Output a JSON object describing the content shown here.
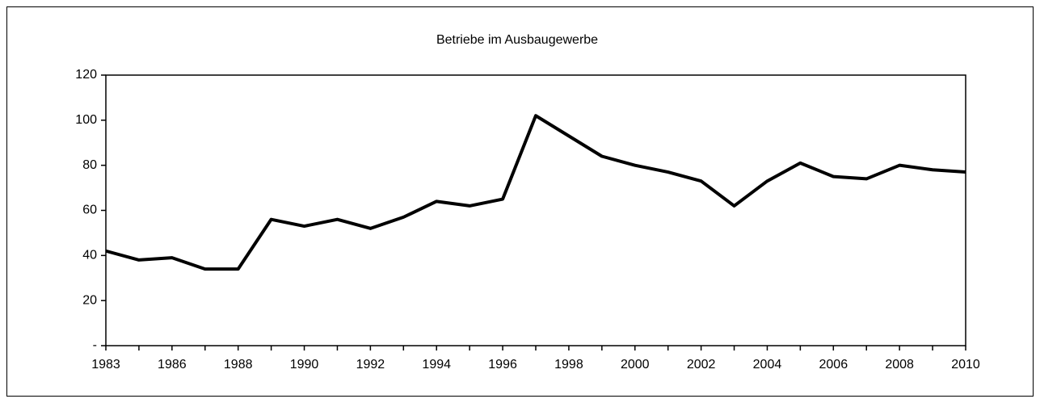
{
  "chart_data": {
    "type": "line",
    "title": "Betriebe im Ausbaugewerbe",
    "categories": [
      "1983",
      null,
      "1986",
      null,
      "1988",
      null,
      "1990",
      null,
      "1992",
      null,
      "1994",
      null,
      "1996",
      null,
      "1998",
      null,
      "2000",
      null,
      "2002",
      null,
      "2004",
      null,
      "2006",
      null,
      "2008",
      null,
      "2010"
    ],
    "values": [
      42,
      38,
      39,
      34,
      34,
      56,
      53,
      56,
      52,
      57,
      64,
      62,
      65,
      102,
      93,
      84,
      80,
      77,
      73,
      62,
      73,
      81,
      75,
      74,
      80,
      78,
      77
    ],
    "color": "#000000",
    "ylim": [
      0,
      120
    ],
    "yticks": [
      {
        "value": 0,
        "label": "-"
      },
      20,
      40,
      60,
      80,
      100,
      120
    ],
    "grid": false
  }
}
